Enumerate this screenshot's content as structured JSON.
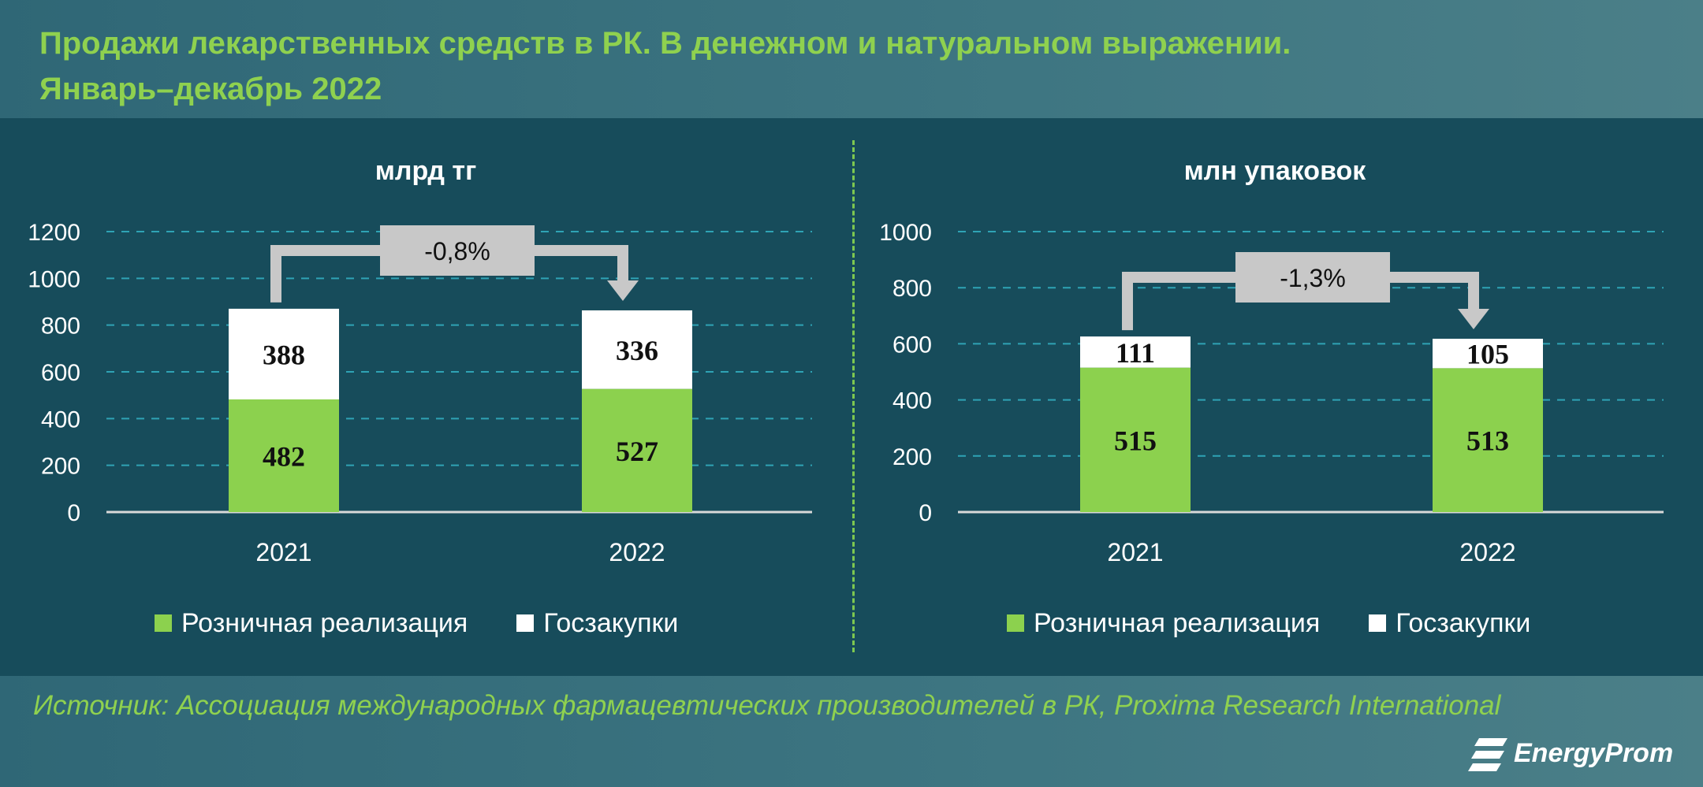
{
  "title": {
    "line1": "Продажи лекарственных средств в РК. В денежном и натуральном выражении.",
    "line2": "Январь–декабрь 2022"
  },
  "source": "Источник: Ассоциация международных фармацевтических производителей в РК, Proxima Research International",
  "logo": {
    "text": "EnergyProm"
  },
  "colors": {
    "retail": "#8cd14e",
    "procurement": "#ffffff",
    "grid": "#2fa3b5",
    "callout": "#c8c8c8",
    "title": "#8fd14f"
  },
  "chart_data": [
    {
      "type": "bar",
      "stacked": true,
      "title": "млрд тг",
      "categories": [
        "2021",
        "2022"
      ],
      "series": [
        {
          "name": "Розничная реализация",
          "values": [
            482,
            527
          ]
        },
        {
          "name": "Госзакупки",
          "values": [
            388,
            336
          ]
        }
      ],
      "ylim": [
        0,
        1200
      ],
      "yticks": [
        0,
        200,
        400,
        600,
        800,
        1000,
        1200
      ],
      "grid": true,
      "legend_position": "bottom",
      "change_label": "-0,8%"
    },
    {
      "type": "bar",
      "stacked": true,
      "title": "млн упаковок",
      "categories": [
        "2021",
        "2022"
      ],
      "series": [
        {
          "name": "Розничная реализация",
          "values": [
            515,
            513
          ]
        },
        {
          "name": "Госзакупки",
          "values": [
            111,
            105
          ]
        }
      ],
      "ylim": [
        0,
        1000
      ],
      "yticks": [
        0,
        200,
        400,
        600,
        800,
        1000
      ],
      "grid": true,
      "legend_position": "bottom",
      "change_label": "-1,3%"
    }
  ]
}
